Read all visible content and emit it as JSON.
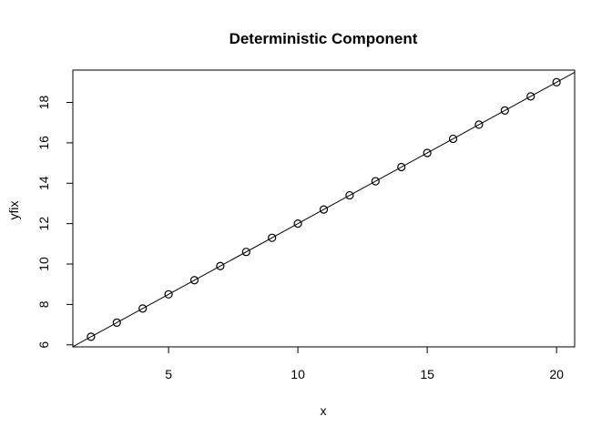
{
  "chart_data": {
    "type": "scatter",
    "title": "Deterministic Component",
    "xlabel": "x",
    "ylabel": "yfix",
    "xlim": [
      1.3,
      20.7
    ],
    "ylim": [
      5.9,
      19.6
    ],
    "x_ticks": [
      5,
      10,
      15,
      20
    ],
    "y_ticks": [
      6,
      8,
      10,
      12,
      14,
      16,
      18
    ],
    "grid": false,
    "legend": "none",
    "series": [
      {
        "x": [
          2,
          3,
          4,
          5,
          6,
          7,
          8,
          9,
          10,
          11,
          12,
          13,
          14,
          15,
          16,
          17,
          18,
          19,
          20
        ],
        "values": [
          6.4,
          7.1,
          7.8,
          8.5,
          9.2,
          9.9,
          10.6,
          11.3,
          12.0,
          12.7,
          13.4,
          14.1,
          14.8,
          15.5,
          16.2,
          16.9,
          17.6,
          18.3,
          19.0
        ]
      }
    ],
    "reference_line": {
      "intercept": 5.0,
      "slope": 0.7
    }
  }
}
